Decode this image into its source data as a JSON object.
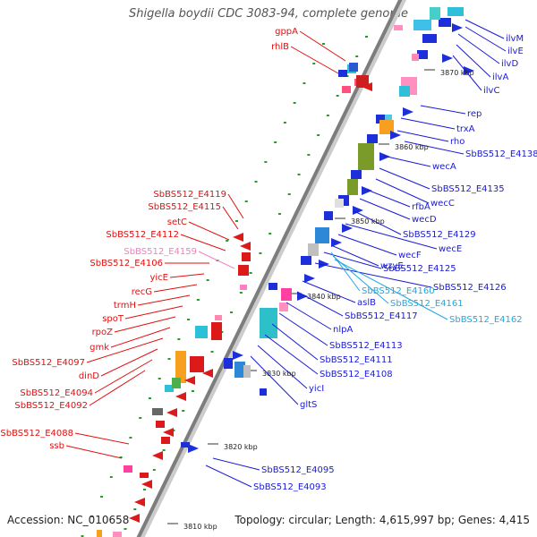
{
  "title": "Shigella boydii CDC 3083-94, complete genome",
  "accession": "Accession: NC_010658",
  "topology": "Topology: circular; Length: 4,615,997 bp; Genes: 4,415",
  "colors": {
    "forward_label": "#1a1ad6",
    "reverse_label": "#e01010",
    "pseudo_label": "#f080c0",
    "rna_label": "#22a8e0",
    "backbone": "#888888"
  },
  "kbp_marks": [
    "3870 kbp",
    "3860 kbp",
    "3850 kbp",
    "3840 kbp",
    "3830 kbp",
    "3820 kbp",
    "3810 kbp"
  ],
  "forward_labels": [
    "ilvM",
    "ilvE",
    "ilvD",
    "ilvA",
    "ilvC",
    "rep",
    "trxA",
    "rho",
    "SbBS512_E4138",
    "wecA",
    "SbBS512_E4135",
    "wecC",
    "rfbA",
    "wecD",
    "SbBS512_E4129",
    "wecE",
    "wecF",
    "wzyE",
    "SbBS512_E4125",
    "SbBS512_E4126",
    "aslB",
    "SbBS512_E4117",
    "nlpA",
    "SbBS512_E4113",
    "SbBS512_E4111",
    "SbBS512_E4108",
    "yicI",
    "gltS",
    "SbBS512_E4095",
    "SbBS512_E4093"
  ],
  "rna_labels": [
    "SbBS512_E4160",
    "SbBS512_E4161",
    "SbBS512_E4162"
  ],
  "reverse_labels": [
    "gppA",
    "rhlB",
    "SbBS512_E4119",
    "SbBS512_E4115",
    "setC",
    "SbBS512_E4112",
    "SbBS512_E4106",
    "yicE",
    "recG",
    "trmH",
    "spoT",
    "rpoZ",
    "gmk",
    "SbBS512_E4097",
    "dinD",
    "SbBS512_E4094",
    "SbBS512_E4092",
    "SbBS512_E4088",
    "ssb"
  ],
  "pseudo_labels": [
    "SbBS512_E4159"
  ]
}
